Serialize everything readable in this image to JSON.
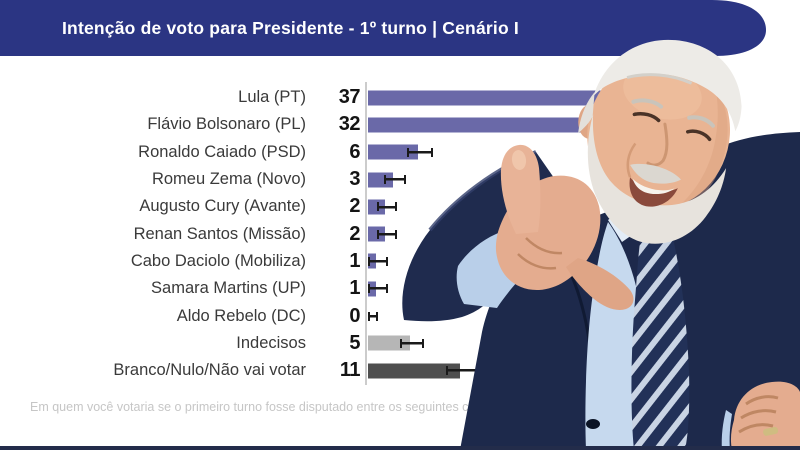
{
  "header": {
    "title": "Intenção de voto para Presidente - 1º turno | Cenário I"
  },
  "chart_data": {
    "type": "bar",
    "orientation": "horizontal",
    "title": "Intenção de voto para Presidente - 1º turno | Cenário I",
    "categories": [
      "Lula (PT)",
      "Flávio Bolsonaro (PL)",
      "Ronaldo Caiado (PSD)",
      "Romeu Zema (Novo)",
      "Augusto Cury (Avante)",
      "Renan Santos (Missão)",
      "Cabo Daciolo (Mobiliza)",
      "Samara Martins (UP)",
      "Aldo Rebelo (DC)",
      "Indecisos",
      "Branco/Nulo/Não vai votar"
    ],
    "values": [
      37,
      32,
      6,
      3,
      2,
      2,
      1,
      1,
      0,
      5,
      11
    ],
    "bar_colors": [
      "#6a69a8",
      "#6a69a8",
      "#6a69a8",
      "#6a69a8",
      "#6a69a8",
      "#6a69a8",
      "#6a69a8",
      "#6a69a8",
      "#6a69a8",
      "#b6b6b6",
      "#4f4f4f"
    ],
    "error_bars": true,
    "xlim": [
      0,
      40
    ],
    "grid": false,
    "legend_position": "none"
  },
  "footer": {
    "question": "Em quem você votaria se o primeiro turno fosse disputado entre os seguintes ca"
  },
  "photo": {
    "name": "lula-photo",
    "description": "Homem sorridente de cabelo e barba brancos, terno azul-marinho, camisa azul clara e gravata listrada, fazendo gesto com a mão"
  },
  "colors": {
    "header_bg": "#2b3583",
    "title_text": "#ffffff",
    "bar_main": "#6a69a8",
    "bar_undecided": "#b6b6b6",
    "bar_blank": "#4f4f4f",
    "axis": "#cccccc",
    "error_bar": "#1a1a1a",
    "label_text": "#3a3a3a",
    "footnote_text": "#c6c6c6",
    "bottom_strip": "#232c4a"
  }
}
